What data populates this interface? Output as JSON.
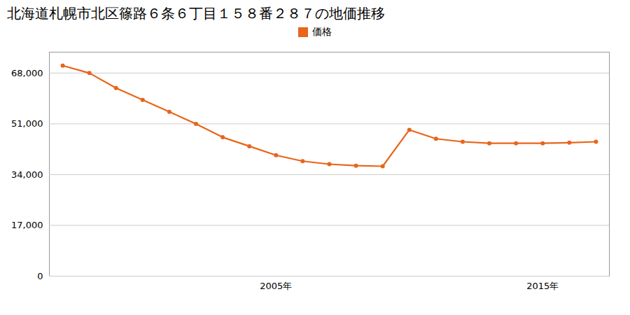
{
  "chart_data": {
    "type": "line",
    "title": "北海道札幌市北区篠路６条６丁目１５８番２８７の地価推移",
    "x": [
      1997,
      1998,
      1999,
      2000,
      2001,
      2002,
      2003,
      2004,
      2005,
      2006,
      2007,
      2008,
      2009,
      2010,
      2011,
      2012,
      2013,
      2014,
      2015,
      2016,
      2017
    ],
    "series": [
      {
        "name": "価格",
        "color": "#E8651A",
        "marker": "circle",
        "values": [
          70500,
          68000,
          63000,
          59000,
          55000,
          51000,
          46500,
          43500,
          40500,
          38500,
          37500,
          37000,
          36800,
          49000,
          46000,
          45000,
          44500,
          44500,
          44500,
          44700,
          45000
        ]
      }
    ],
    "xlim": [
      1996.5,
      2017.5
    ],
    "xticks": [
      {
        "value": 2005,
        "label": "2005年"
      },
      {
        "value": 2015,
        "label": "2015年"
      }
    ],
    "ylim": [
      0,
      75000
    ],
    "yticks": [
      0,
      {
        "value": 17000,
        "label": "17,000"
      },
      {
        "value": 34000,
        "label": "34,000"
      },
      {
        "value": 51000,
        "label": "51,000"
      },
      {
        "value": 68000,
        "label": "68,000"
      }
    ],
    "grid": true,
    "legend": "upper center"
  }
}
